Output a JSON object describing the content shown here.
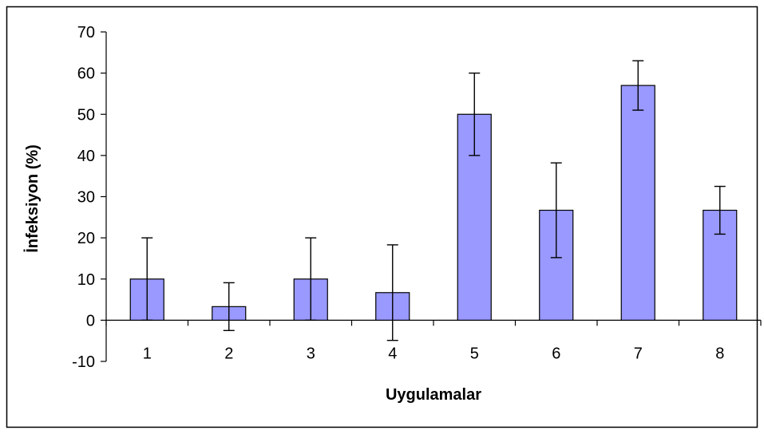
{
  "chart_data": {
    "type": "bar",
    "title": "",
    "xlabel": "Uygulamalar",
    "ylabel": "İnfeksiyon (%)",
    "categories": [
      "1",
      "2",
      "3",
      "4",
      "5",
      "6",
      "7",
      "8"
    ],
    "values": [
      10,
      3.3,
      10,
      6.7,
      50,
      26.7,
      57,
      26.7
    ],
    "error_bars": [
      10,
      5.8,
      10,
      11.6,
      10,
      11.5,
      6,
      5.8
    ],
    "ylim": [
      -10,
      70
    ],
    "yticks": [
      "-10",
      "0",
      "10",
      "20",
      "30",
      "40",
      "50",
      "60",
      "70"
    ],
    "grid": false,
    "legend": "none",
    "colors": {
      "bar_fill": "#9999ff",
      "bar_stroke": "#000000",
      "frame": "#000000"
    }
  }
}
